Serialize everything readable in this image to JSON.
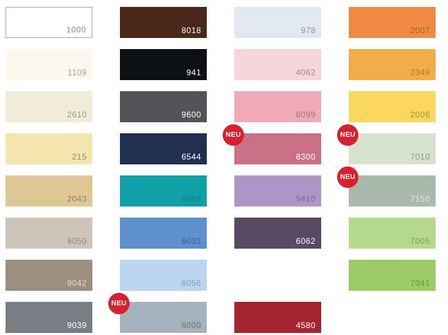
{
  "badge": {
    "label": "NEU",
    "color": "#d6212e",
    "text_color": "#ffffff"
  },
  "palette": {
    "columns": [
      {
        "swatches": [
          {
            "code": "1000",
            "bg": "#ffffff",
            "text": "#8c8c8c",
            "border": "#ababab"
          },
          {
            "code": "1109",
            "bg": "#faf8ef",
            "text": "#a3a199"
          },
          {
            "code": "2610",
            "bg": "#f1ecd8",
            "text": "#9b9784"
          },
          {
            "code": "215",
            "bg": "#f3e5ad",
            "text": "#958d6c"
          },
          {
            "code": "2043",
            "bg": "#dfc795",
            "text": "#8f8160"
          },
          {
            "code": "9050",
            "bg": "#ccc5b8",
            "text": "#8d877c"
          },
          {
            "code": "9042",
            "bg": "#9c8f80",
            "text": "#e2dcd4"
          },
          {
            "code": "9039",
            "bg": "#797e85",
            "text": "#ffffff"
          }
        ]
      },
      {
        "swatches": [
          {
            "code": "8018",
            "bg": "#49281a",
            "text": "#ffffff"
          },
          {
            "code": "941",
            "bg": "#0d1116",
            "text": "#ffffff"
          },
          {
            "code": "9600",
            "bg": "#555258",
            "text": "#ffffff"
          },
          {
            "code": "6544",
            "bg": "#1f3050",
            "text": "#ffffff"
          },
          {
            "code": "6066",
            "bg": "#10a0a8",
            "text": "#1e7c84"
          },
          {
            "code": "6031",
            "bg": "#5c90ce",
            "text": "#39618f"
          },
          {
            "code": "6056",
            "bg": "#bcd6f1",
            "text": "#8a9aac"
          },
          {
            "code": "6000",
            "bg": "#a4b3bb",
            "text": "#68737a",
            "neu": true
          }
        ]
      },
      {
        "swatches": [
          {
            "code": "978",
            "bg": "#e2e8ef",
            "text": "#8e959e"
          },
          {
            "code": "4062",
            "bg": "#f6d5db",
            "text": "#a6888d"
          },
          {
            "code": "8099",
            "bg": "#efaab5",
            "text": "#9f7880"
          },
          {
            "code": "8300",
            "bg": "#c96f86",
            "text": "#ffffff",
            "neu": true
          },
          {
            "code": "5410",
            "bg": "#ad96c5",
            "text": "#7c6b94"
          },
          {
            "code": "6062",
            "bg": "#574a62",
            "text": "#ffffff"
          },
          {
            "code": "4580",
            "bg": "#a42430",
            "text": "#ffffff",
            "row": 8
          }
        ]
      },
      {
        "swatches": [
          {
            "code": "2007",
            "bg": "#f18a43",
            "text": "#a85e24"
          },
          {
            "code": "2349",
            "bg": "#f3ad48",
            "text": "#b07a28"
          },
          {
            "code": "2006",
            "bg": "#fbd75f",
            "text": "#a49043"
          },
          {
            "code": "7010",
            "bg": "#d7e2ce",
            "text": "#949d8b",
            "neu": true
          },
          {
            "code": "7150",
            "bg": "#a9baac",
            "text": "#e0e5df",
            "neu": true
          },
          {
            "code": "7005",
            "bg": "#b5da8d",
            "text": "#7fa055"
          },
          {
            "code": "7041",
            "bg": "#9ccb66",
            "text": "#6d9440"
          }
        ]
      }
    ]
  }
}
